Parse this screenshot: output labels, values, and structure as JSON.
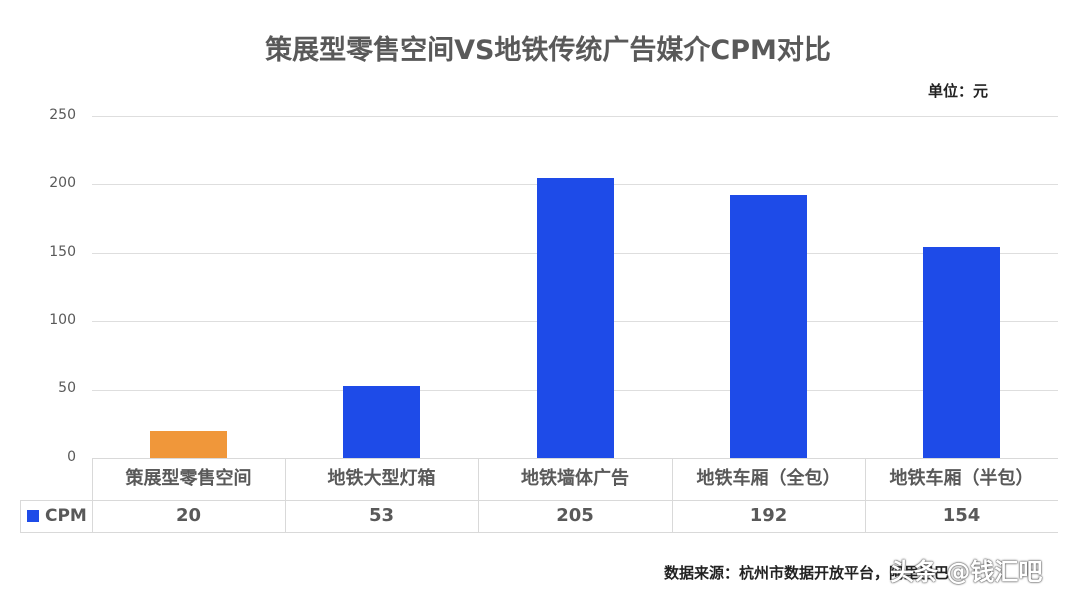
{
  "chart": {
    "title": "策展型零售空间VS地铁传统广告媒介CPM对比",
    "unit_label": "单位：元",
    "source": "数据来源：杭州市数据开放平台，阿里巴巴",
    "watermark": "头条 @钱汇吧",
    "legend_label": "CPM",
    "y_ticks": [
      "250",
      "200",
      "150",
      "100",
      "50",
      "0"
    ],
    "colors": {
      "highlight": "#F0973A",
      "primary": "#1E4BE8",
      "grid": "#DEDEDE",
      "text": "#595959"
    }
  },
  "chart_data": {
    "type": "bar",
    "title": "策展型零售空间VS地铁传统广告媒介CPM对比",
    "xlabel": "",
    "ylabel": "",
    "unit": "元",
    "ylim": [
      0,
      250
    ],
    "y_ticks": [
      0,
      50,
      100,
      150,
      200,
      250
    ],
    "grid": true,
    "legend_position": "data-table",
    "categories": [
      "策展型零售空间",
      "地铁大型灯箱",
      "地铁墙体广告",
      "地铁车厢（全包）",
      "地铁车厢（半包）"
    ],
    "series": [
      {
        "name": "CPM",
        "values": [
          20,
          53,
          205,
          192,
          154
        ],
        "colors": [
          "#F0973A",
          "#1E4BE8",
          "#1E4BE8",
          "#1E4BE8",
          "#1E4BE8"
        ]
      }
    ],
    "table": {
      "row_header": "CPM",
      "values": [
        "20",
        "53",
        "205",
        "192",
        "154"
      ]
    }
  }
}
